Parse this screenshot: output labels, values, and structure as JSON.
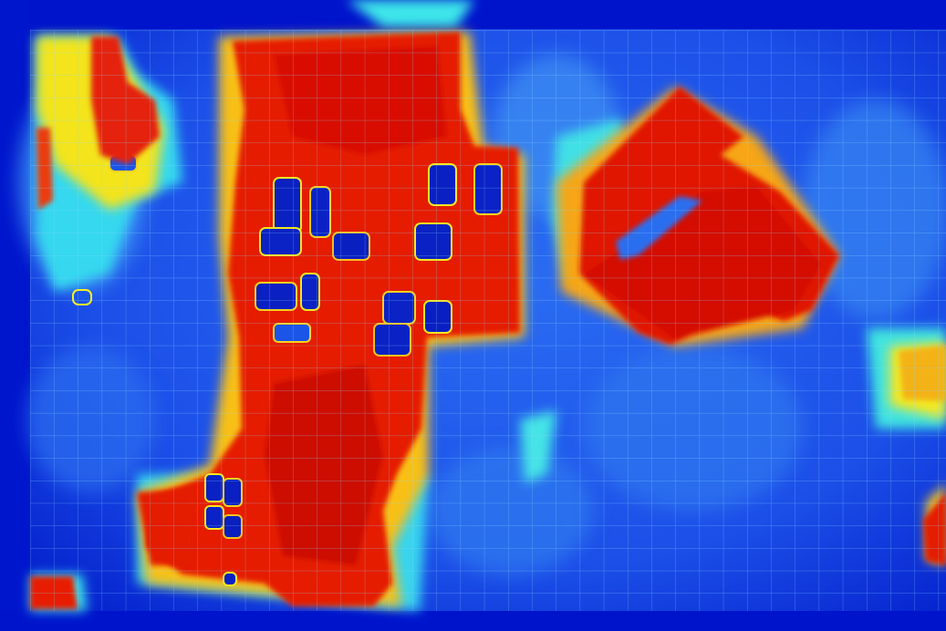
{
  "image": {
    "kind": "false-color heatmap over aerial imagery",
    "palette": {
      "deep_blue": "#0010c8",
      "blue": "#1f55f0",
      "light_blue": "#3f8cf5",
      "cyan": "#3ef0e8",
      "yellow": "#f6f21f",
      "orange": "#ff7a10",
      "red": "#e81600",
      "dark_red": "#c80e00",
      "grid_line": "#8fdcff"
    },
    "overlay_grid": true,
    "visible_text": []
  }
}
